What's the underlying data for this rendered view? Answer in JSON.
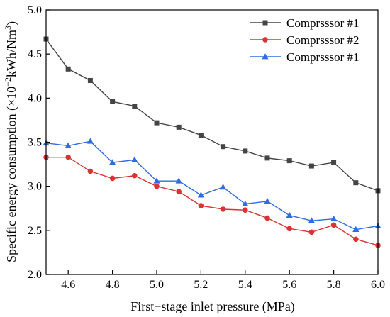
{
  "chart_data": {
    "type": "line",
    "xlabel": "First−stage inlet pressure (MPa)",
    "ylabel_main": "Specific energy consumption (×10",
    "ylabel_exp": "−2",
    "ylabel_unit": "kWh/Nm",
    "ylabel_unit_exp": "3",
    "ylabel_close": ")",
    "xlim": [
      4.5,
      6.0
    ],
    "ylim": [
      2.0,
      5.0
    ],
    "xticks": [
      "4.6",
      "4.8",
      "5.0",
      "5.2",
      "5.4",
      "5.6",
      "5.8",
      "6.0"
    ],
    "yticks": [
      "2.0",
      "2.5",
      "3.0",
      "3.5",
      "4.0",
      "4.5",
      "5.0"
    ],
    "legend_position": "top-right",
    "x": [
      4.5,
      4.6,
      4.7,
      4.8,
      4.9,
      5.0,
      5.1,
      5.2,
      5.3,
      5.4,
      5.5,
      5.6,
      5.7,
      5.8,
      5.9,
      6.0
    ],
    "series": [
      {
        "name": "Comprsssor #1",
        "marker": "square",
        "color": "#454545",
        "values": [
          4.67,
          4.33,
          4.2,
          3.96,
          3.91,
          3.72,
          3.67,
          3.58,
          3.45,
          3.4,
          3.32,
          3.29,
          3.23,
          3.27,
          3.04,
          2.95
        ]
      },
      {
        "name": "Comprsssor #2",
        "marker": "circle",
        "color": "#d93434",
        "values": [
          3.33,
          3.33,
          3.17,
          3.09,
          3.12,
          3.0,
          2.94,
          2.78,
          2.74,
          2.73,
          2.64,
          2.52,
          2.48,
          2.56,
          2.4,
          2.33
        ]
      },
      {
        "name": "Comprsssor #1",
        "marker": "triangle",
        "color": "#2e6ce0",
        "values": [
          3.49,
          3.46,
          3.51,
          3.27,
          3.3,
          3.06,
          3.06,
          2.9,
          2.99,
          2.8,
          2.83,
          2.67,
          2.61,
          2.63,
          2.51,
          2.55
        ]
      }
    ]
  }
}
